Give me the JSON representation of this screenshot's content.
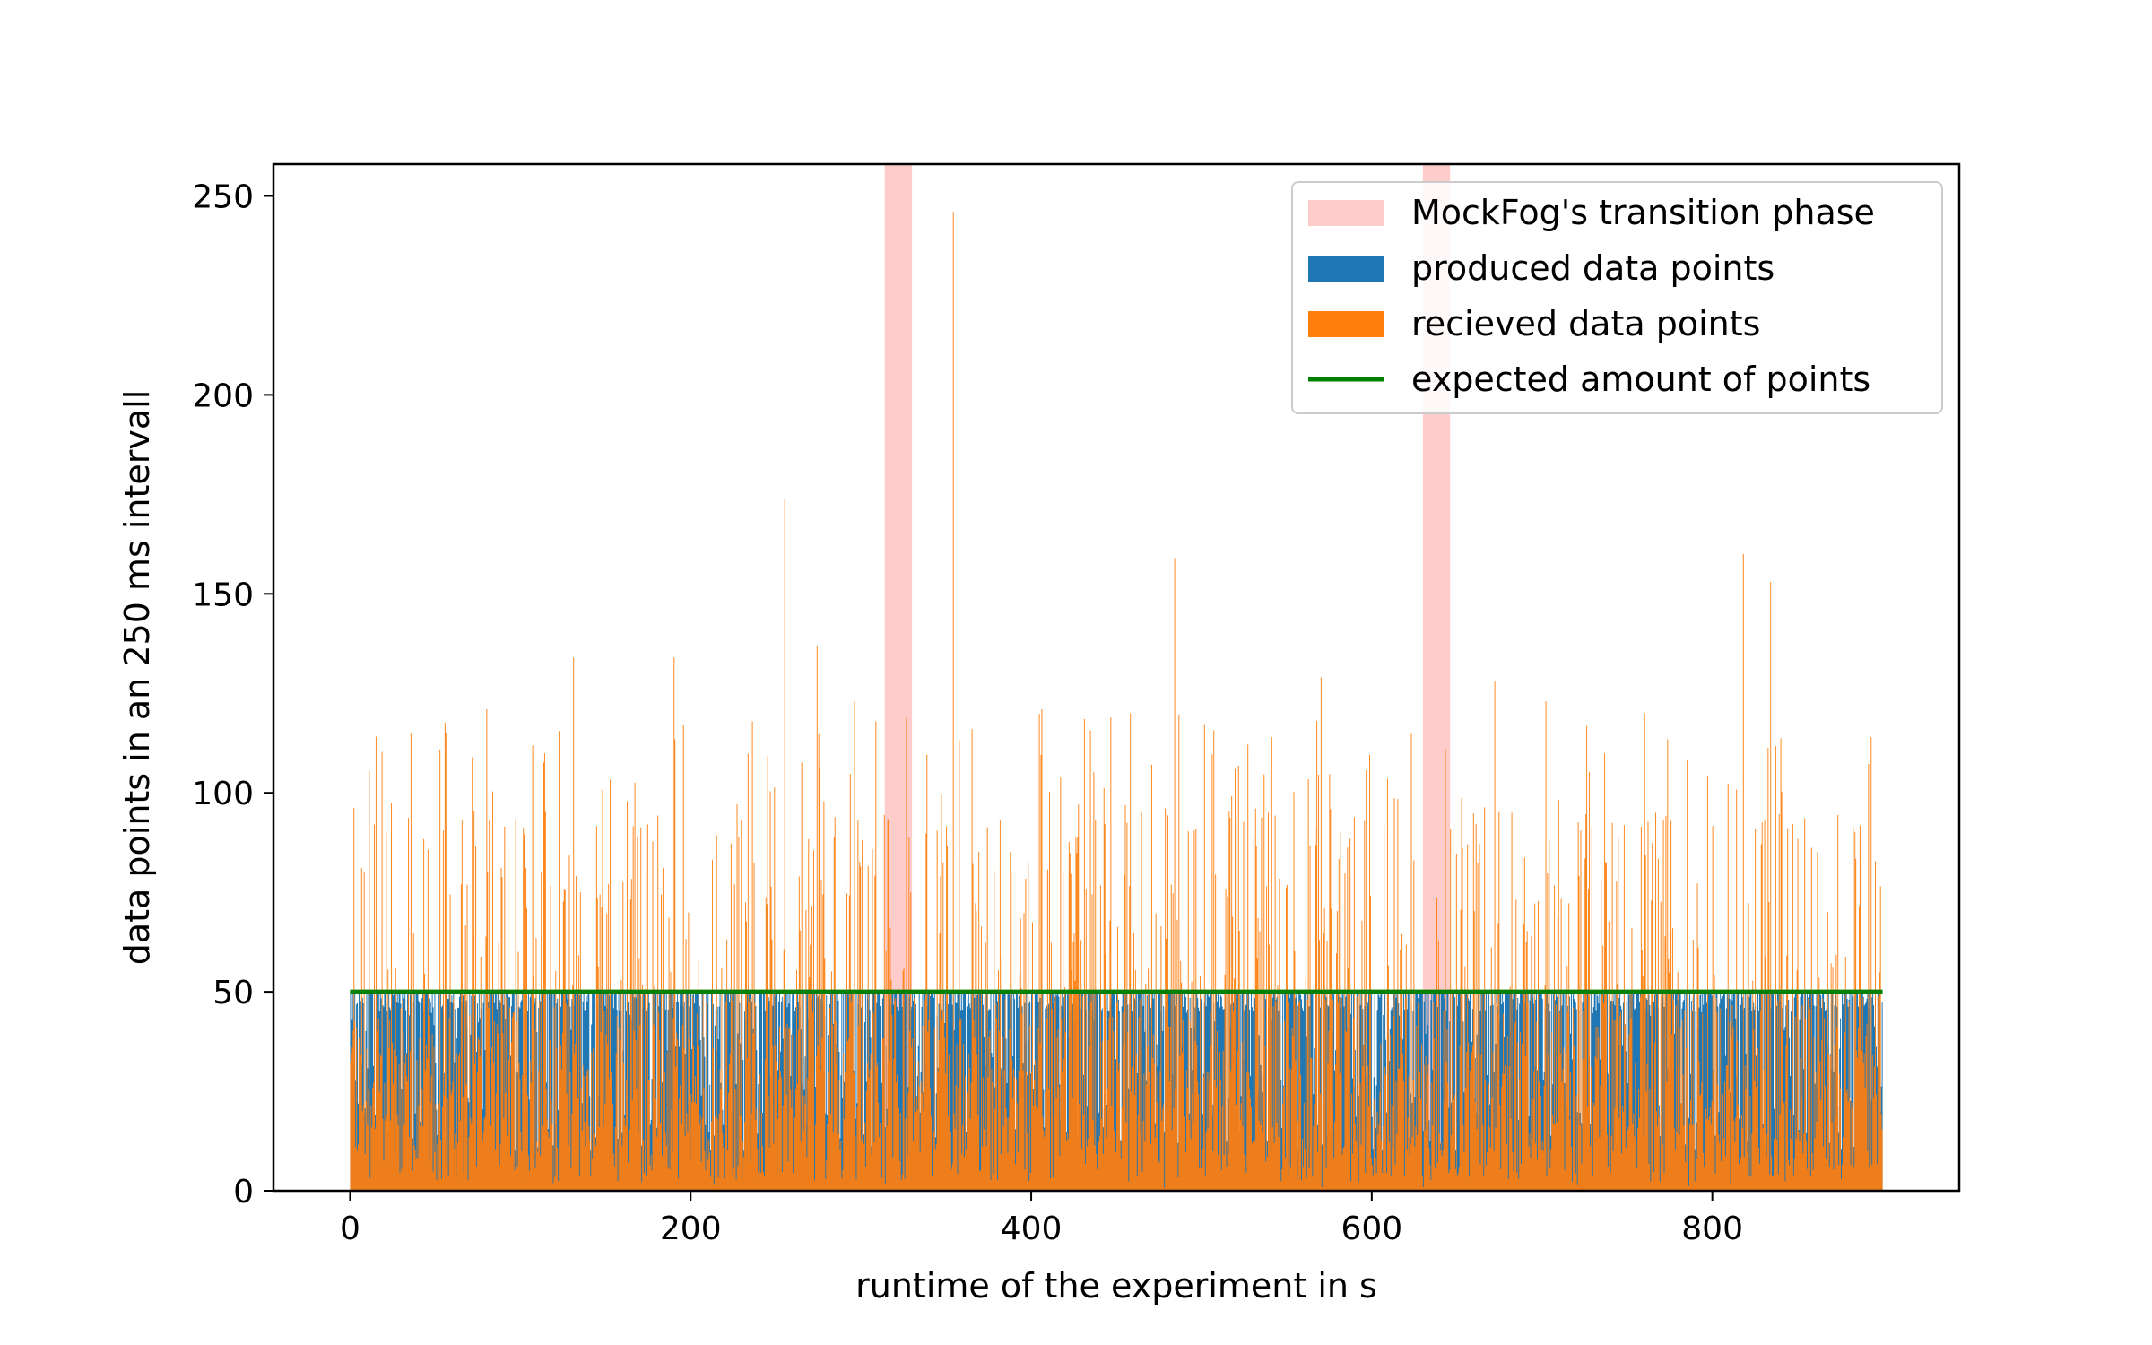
{
  "chart_data": {
    "type": "bar",
    "title": "",
    "xlabel": "runtime of the experiment in s",
    "ylabel": "data points in an 250 ms intervall",
    "xlim": [
      -45,
      945
    ],
    "ylim": [
      0,
      258
    ],
    "x_range": [
      0,
      900
    ],
    "bin_width_s": 0.25,
    "x_ticks": [
      0,
      200,
      400,
      600,
      800
    ],
    "y_ticks": [
      0,
      50,
      100,
      150,
      200,
      250
    ],
    "grid": false,
    "legend_position": "top-right",
    "transition_phases": [
      {
        "start": 314,
        "end": 330
      },
      {
        "start": 630,
        "end": 646
      }
    ],
    "expected_value": 50,
    "typical_range": {
      "min": 0,
      "max": 100
    },
    "notable_peaks": [
      {
        "x": 255,
        "y": 174
      },
      {
        "x": 354,
        "y": 246
      },
      {
        "x": 484,
        "y": 159
      },
      {
        "x": 131,
        "y": 134
      },
      {
        "x": 190,
        "y": 134
      },
      {
        "x": 274,
        "y": 137
      },
      {
        "x": 818,
        "y": 160
      },
      {
        "x": 834,
        "y": 153
      },
      {
        "x": 80,
        "y": 121
      },
      {
        "x": 570,
        "y": 129
      },
      {
        "x": 672,
        "y": 128
      },
      {
        "x": 702,
        "y": 123
      },
      {
        "x": 760,
        "y": 120
      },
      {
        "x": 236,
        "y": 118
      },
      {
        "x": 296,
        "y": 123
      },
      {
        "x": 406,
        "y": 121
      },
      {
        "x": 458,
        "y": 120
      },
      {
        "x": 56,
        "y": 115
      }
    ],
    "series": [
      {
        "name": "produced data points",
        "color": "#1f77b4"
      },
      {
        "name": "recieved data points",
        "color": "#ff7f0e"
      }
    ],
    "legend": [
      {
        "label": "MockFog's transition phase",
        "color": "#ffcccc",
        "kind": "patch"
      },
      {
        "label": "produced data points",
        "color": "#1f77b4",
        "kind": "patch"
      },
      {
        "label": "recieved data points",
        "color": "#ff7f0e",
        "kind": "patch"
      },
      {
        "label": "expected amount of points",
        "color": "#008000",
        "kind": "line"
      }
    ]
  }
}
